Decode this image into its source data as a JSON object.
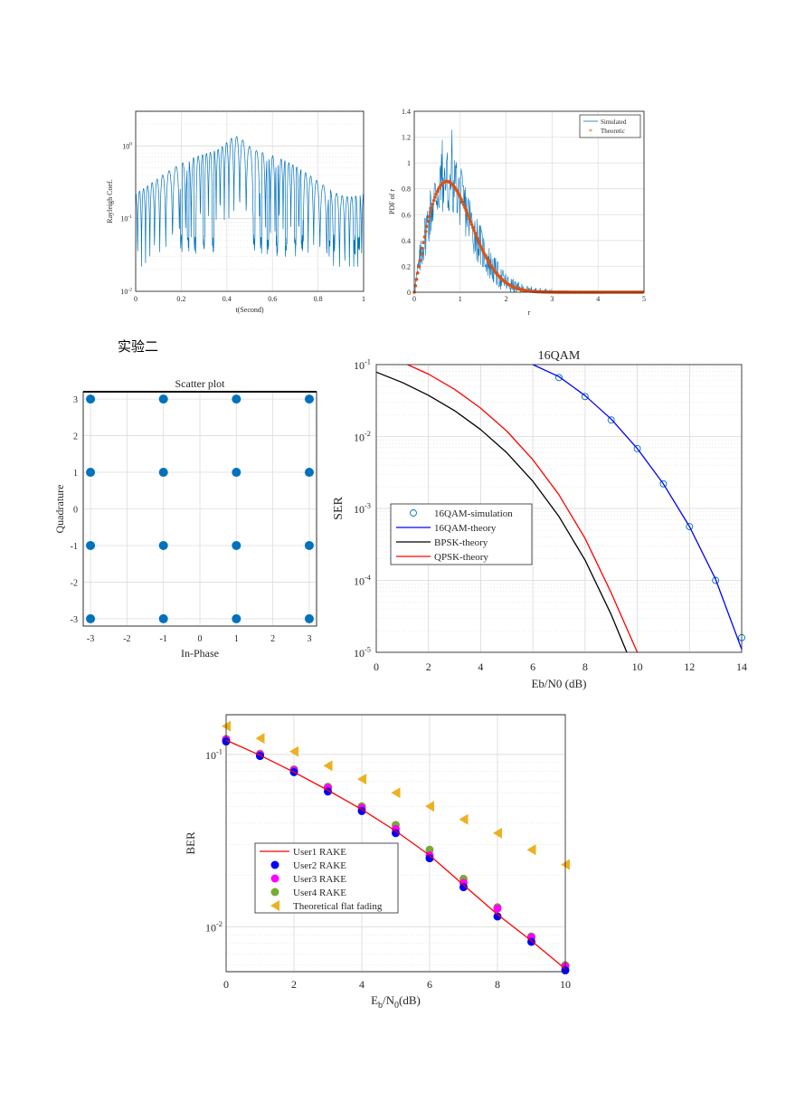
{
  "section_heading": "实验二",
  "chart_data": [
    {
      "type": "line",
      "xlabel": "t(Second)",
      "ylabel": "Rayleigh Coef.",
      "xlim": [
        0,
        1
      ],
      "ylim": [
        0.01,
        3
      ],
      "yscale": "log",
      "xticks": [
        "0",
        "0.2",
        "0.4",
        "0.6",
        "0.8",
        "1"
      ],
      "yticks": [
        "10^-2",
        "10^-1",
        "10^0"
      ],
      "grid": true,
      "series": [
        {
          "color": "#0072bd",
          "peaks": [
            0.01,
            0.07,
            0.15,
            0.27,
            0.37,
            0.43,
            0.46,
            0.6,
            0.65,
            0.81,
            0.9,
            1.0
          ],
          "deep_fades": [
            0.2,
            0.23,
            0.26,
            0.3,
            0.34,
            0.52,
            0.55,
            0.58,
            0.62,
            0.66,
            0.7,
            0.73,
            0.85,
            0.87,
            0.96,
            0.98
          ]
        }
      ]
    },
    {
      "type": "line",
      "xlabel": "r",
      "ylabel": "PDF of r",
      "xlim": [
        0,
        5
      ],
      "ylim": [
        0,
        1.4
      ],
      "xticks": [
        "0",
        "1",
        "2",
        "3",
        "4",
        "5"
      ],
      "yticks": [
        "0",
        "0.2",
        "0.4",
        "0.6",
        "0.8",
        "1",
        "1.2",
        "1.4"
      ],
      "grid": true,
      "legend": "top-right",
      "series": [
        {
          "name": "Simulated",
          "color": "#0072bd"
        },
        {
          "name": "Theoretic",
          "color": "#d95319",
          "formula": "2r/Ω·exp(-r²/Ω), Ω=1"
        }
      ]
    },
    {
      "type": "scatter",
      "title": "Scatter plot",
      "xlabel": "In-Phase",
      "ylabel": "Quadrature",
      "xlim": [
        -3.2,
        3.2
      ],
      "ylim": [
        -3.2,
        3.2
      ],
      "xticks": [
        "-3",
        "-2",
        "-1",
        "0",
        "1",
        "2",
        "3"
      ],
      "yticks": [
        "-3",
        "-2",
        "-1",
        "0",
        "1",
        "2",
        "3"
      ],
      "grid": true,
      "points": [
        [
          -3,
          3
        ],
        [
          -1,
          3
        ],
        [
          1,
          3
        ],
        [
          3,
          3
        ],
        [
          -3,
          1
        ],
        [
          -1,
          1
        ],
        [
          1,
          1
        ],
        [
          3,
          1
        ],
        [
          -3,
          -1
        ],
        [
          -1,
          -1
        ],
        [
          1,
          -1
        ],
        [
          3,
          -1
        ],
        [
          -3,
          -3
        ],
        [
          -1,
          -3
        ],
        [
          1,
          -3
        ],
        [
          3,
          -3
        ]
      ]
    },
    {
      "type": "line",
      "title": "16QAM",
      "xlabel": "Eb/N0 (dB)",
      "ylabel": "SER",
      "xlim": [
        0,
        14
      ],
      "ylim": [
        1e-05,
        0.1
      ],
      "yscale": "log",
      "xticks": [
        "0",
        "2",
        "4",
        "6",
        "8",
        "10",
        "12",
        "14"
      ],
      "yticks": [
        "10^-5",
        "10^-4",
        "10^-3",
        "10^-2",
        "10^-1"
      ],
      "legend": "middle-left",
      "series": [
        {
          "name": "16QAM-simulation",
          "color": "#0072bd",
          "marker": "o",
          "x": [
            7,
            8,
            9,
            10,
            11,
            12,
            13,
            14
          ],
          "y": [
            0.066,
            0.036,
            0.017,
            0.0068,
            0.0022,
            0.00056,
            0.0001,
            1.6e-05
          ]
        },
        {
          "name": "16QAM-theory",
          "color": "#0000ff",
          "x": [
            6,
            7,
            8,
            9,
            10,
            11,
            12,
            13,
            14
          ],
          "y": [
            0.1,
            0.068,
            0.037,
            0.0175,
            0.0068,
            0.0022,
            0.00056,
            0.000104,
            1.1e-05
          ]
        },
        {
          "name": "BPSK-theory",
          "color": "#000000",
          "x": [
            0,
            1,
            2,
            3,
            4,
            5,
            6,
            7,
            8,
            9,
            9.6
          ],
          "y": [
            0.0786,
            0.0563,
            0.0375,
            0.0229,
            0.0125,
            0.00595,
            0.00239,
            0.000773,
            0.000191,
            3.36e-05,
            1e-05
          ]
        },
        {
          "name": "QPSK-theory",
          "color": "#ff0000",
          "x": [
            1.2,
            2,
            3,
            4,
            5,
            6,
            7,
            8,
            9,
            10
          ],
          "y": [
            0.1,
            0.0738,
            0.0453,
            0.0248,
            0.0119,
            0.00477,
            0.00155,
            0.000382,
            6.72e-05,
            1e-05
          ]
        }
      ]
    },
    {
      "type": "line",
      "xlabel": "Eb/N0(dB)",
      "ylabel": "BER",
      "xlim": [
        0,
        10
      ],
      "ylim": [
        0.0055,
        0.17
      ],
      "yscale": "log",
      "xticks": [
        "0",
        "2",
        "4",
        "6",
        "8",
        "10"
      ],
      "yticks": [
        "10^-2",
        "10^-1"
      ],
      "legend": "lower-left",
      "series": [
        {
          "name": "User1 RAKE",
          "color": "#ff0000",
          "x": [
            0,
            1,
            2,
            3,
            4,
            5,
            6,
            7,
            8,
            9,
            10
          ],
          "y": [
            0.121,
            0.099,
            0.079,
            0.062,
            0.048,
            0.036,
            0.026,
            0.0175,
            0.0118,
            0.0083,
            0.0057
          ]
        },
        {
          "name": "User2 RAKE",
          "color": "#0000ff",
          "marker": "o",
          "x": [
            0,
            1,
            2,
            3,
            4,
            5,
            6,
            7,
            8,
            9,
            10
          ],
          "y": [
            0.119,
            0.098,
            0.079,
            0.061,
            0.047,
            0.035,
            0.025,
            0.017,
            0.0115,
            0.0082,
            0.0056
          ]
        },
        {
          "name": "User3 RAKE",
          "color": "#ff00ff",
          "marker": "o",
          "x": [
            0,
            1,
            2,
            3,
            4,
            5,
            6,
            7,
            8,
            9,
            10
          ],
          "y": [
            0.122,
            0.1,
            0.081,
            0.064,
            0.049,
            0.037,
            0.026,
            0.018,
            0.0128,
            0.0087,
            0.0059
          ]
        },
        {
          "name": "User4 RAKE",
          "color": "#77ac30",
          "marker": "o",
          "x": [
            0,
            1,
            2,
            3,
            4,
            5,
            6,
            7,
            8,
            9,
            10
          ],
          "y": [
            0.123,
            0.101,
            0.082,
            0.065,
            0.05,
            0.039,
            0.028,
            0.019,
            0.013,
            0.0088,
            0.006
          ]
        },
        {
          "name": "Theoretical flat fading",
          "color": "#edb120",
          "marker": "<",
          "x": [
            0,
            1,
            2,
            3,
            4,
            5,
            6,
            7,
            8,
            9,
            10
          ],
          "y": [
            0.146,
            0.124,
            0.104,
            0.086,
            0.072,
            0.06,
            0.05,
            0.042,
            0.035,
            0.028,
            0.023
          ]
        }
      ]
    }
  ]
}
